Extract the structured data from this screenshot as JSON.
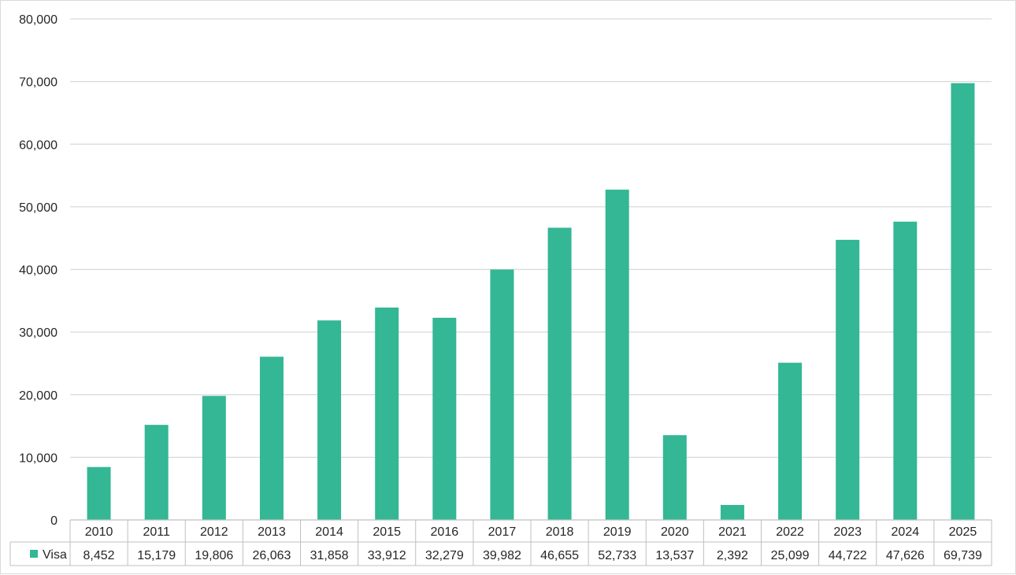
{
  "chart_data": {
    "type": "bar",
    "categories": [
      "2010",
      "2011",
      "2012",
      "2013",
      "2014",
      "2015",
      "2016",
      "2017",
      "2018",
      "2019",
      "2020",
      "2021",
      "2022",
      "2023",
      "2024",
      "2025"
    ],
    "series": [
      {
        "name": "Visa",
        "color": "#33b795",
        "values": [
          8452,
          15179,
          19806,
          26063,
          31858,
          33912,
          32279,
          39982,
          46655,
          52733,
          13537,
          2392,
          25099,
          44722,
          47626,
          69739
        ],
        "value_labels": [
          "8,452",
          "15,179",
          "19,806",
          "26,063",
          "31,858",
          "33,912",
          "32,279",
          "39,982",
          "46,655",
          "52,733",
          "13,537",
          "2,392",
          "25,099",
          "44,722",
          "47,626",
          "69,739"
        ]
      }
    ],
    "ylim": [
      0,
      80000
    ],
    "y_ticks": [
      0,
      10000,
      20000,
      30000,
      40000,
      50000,
      60000,
      70000,
      80000
    ],
    "y_tick_labels": [
      "0",
      "10,000",
      "20,000",
      "30,000",
      "40,000",
      "50,000",
      "60,000",
      "70,000",
      "80,000"
    ],
    "grid": true,
    "legend": "data table below x-axis",
    "title": "",
    "xlabel": "",
    "ylabel": ""
  }
}
